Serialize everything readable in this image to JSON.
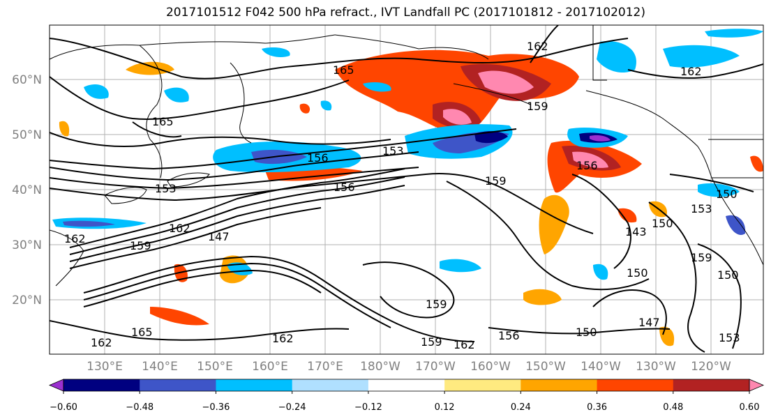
{
  "title": "2017101512 F042 500 hPa refract., IVT Landfall PC (2017101812 - 2017102012)",
  "map": {
    "lat_labels": [
      "60°N",
      "50°N",
      "40°N",
      "30°N",
      "20°N"
    ],
    "lon_labels": [
      "130°E",
      "140°E",
      "150°E",
      "160°E",
      "170°E",
      "180°W",
      "170°W",
      "160°W",
      "150°W",
      "140°W",
      "130°W",
      "120°W"
    ],
    "contour_labels": [
      "165",
      "162",
      "162",
      "165",
      "159",
      "156",
      "153",
      "156",
      "153",
      "156",
      "150",
      "159",
      "162",
      "147",
      "162",
      "159",
      "143",
      "150",
      "150",
      "150",
      "162",
      "165",
      "162",
      "159",
      "162",
      "156",
      "159",
      "147",
      "153",
      "150",
      "153",
      "159"
    ]
  },
  "colorbar": {
    "colors": [
      "#9b30d0",
      "#000080",
      "#3e55c8",
      "#00bfff",
      "#b0e0ff",
      "#ffffff",
      "#ffea80",
      "#ffa500",
      "#ff4500",
      "#b22222",
      "#ff88b0"
    ],
    "tick_labels": [
      "−0.60",
      "−0.48",
      "−0.36",
      "−0.24",
      "−0.12",
      "0.12",
      "0.24",
      "0.36",
      "0.48",
      "0.60"
    ]
  }
}
